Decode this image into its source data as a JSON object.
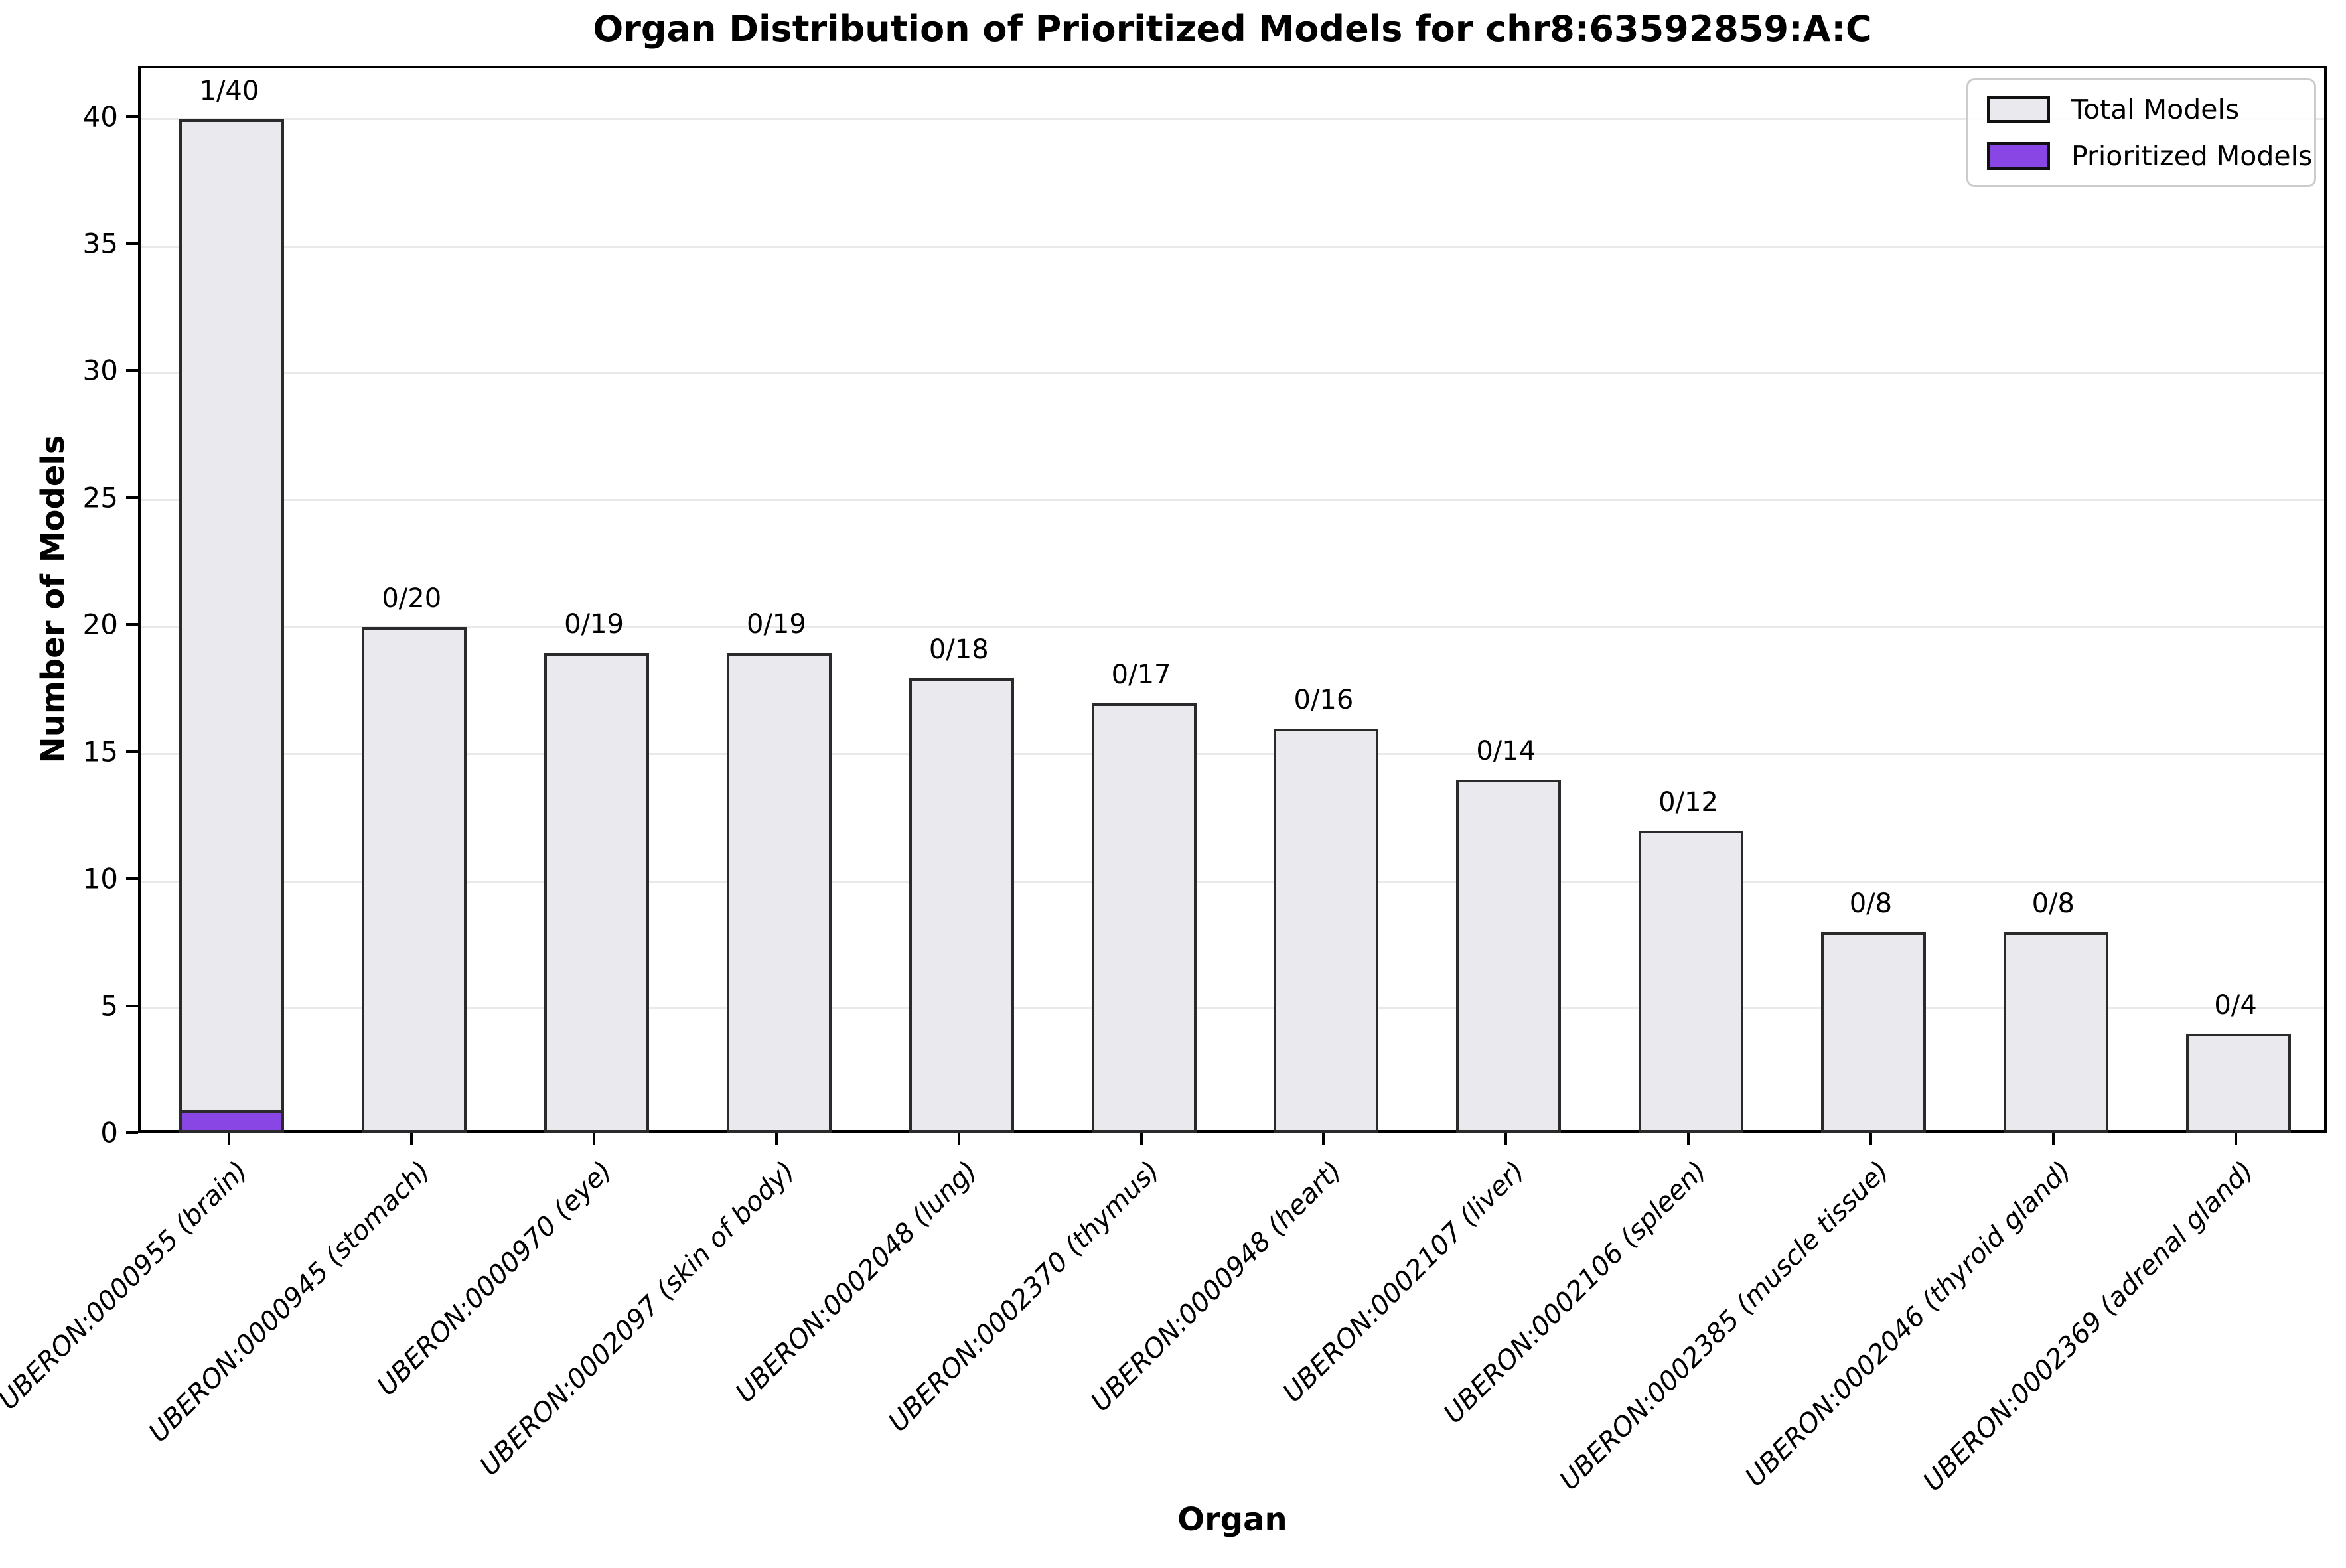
{
  "chart_data": {
    "type": "bar",
    "title": "Organ Distribution of Prioritized Models for chr8:63592859:A:C",
    "xlabel": "Organ",
    "ylabel": "Number of Models",
    "ylim": [
      0,
      42
    ],
    "yticks": [
      0,
      5,
      10,
      15,
      20,
      25,
      30,
      35,
      40
    ],
    "grid": "horizontal",
    "legend_position": "upper right",
    "categories": [
      "UBERON:0000955 (brain)",
      "UBERON:0000945 (stomach)",
      "UBERON:0000970 (eye)",
      "UBERON:0002097 (skin of body)",
      "UBERON:0002048 (lung)",
      "UBERON:0002370 (thymus)",
      "UBERON:0000948 (heart)",
      "UBERON:0002107 (liver)",
      "UBERON:0002106 (spleen)",
      "UBERON:0002385 (muscle tissue)",
      "UBERON:0002046 (thyroid gland)",
      "UBERON:0002369 (adrenal gland)"
    ],
    "series": [
      {
        "name": "Total Models",
        "color": "#e9e9ee",
        "values": [
          40,
          20,
          19,
          19,
          18,
          17,
          16,
          14,
          12,
          8,
          8,
          4
        ]
      },
      {
        "name": "Prioritized Models",
        "color": "#8a45e5",
        "values": [
          1,
          0,
          0,
          0,
          0,
          0,
          0,
          0,
          0,
          0,
          0,
          0
        ]
      }
    ],
    "bar_labels": [
      "1/40",
      "0/20",
      "0/19",
      "0/19",
      "0/18",
      "0/17",
      "0/16",
      "0/14",
      "0/12",
      "0/8",
      "0/8",
      "0/4"
    ],
    "colors": {
      "bar_fill": "#e9e9ee",
      "bar_edge": "#2a2a2a",
      "prioritized_fill": "#8a45e5",
      "gridline": "#e9e9e9",
      "spine": "#000000"
    }
  }
}
